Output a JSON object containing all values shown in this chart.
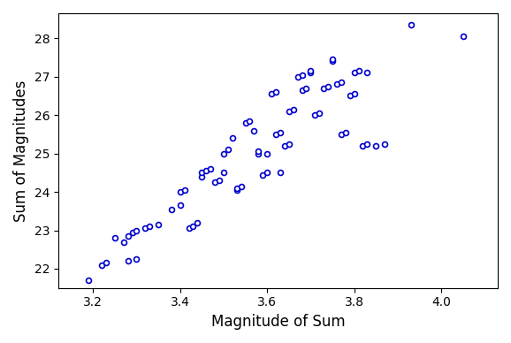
{
  "x": [
    3.19,
    3.22,
    3.23,
    3.25,
    3.27,
    3.28,
    3.29,
    3.3,
    3.28,
    3.3,
    3.32,
    3.33,
    3.35,
    3.38,
    3.4,
    3.4,
    3.41,
    3.42,
    3.43,
    3.44,
    3.45,
    3.45,
    3.46,
    3.47,
    3.48,
    3.49,
    3.5,
    3.5,
    3.51,
    3.52,
    3.53,
    3.53,
    3.54,
    3.55,
    3.56,
    3.57,
    3.58,
    3.58,
    3.59,
    3.6,
    3.6,
    3.61,
    3.62,
    3.62,
    3.63,
    3.63,
    3.64,
    3.65,
    3.65,
    3.66,
    3.67,
    3.68,
    3.68,
    3.69,
    3.7,
    3.7,
    3.71,
    3.72,
    3.73,
    3.74,
    3.75,
    3.75,
    3.76,
    3.77,
    3.77,
    3.78,
    3.79,
    3.8,
    3.8,
    3.81,
    3.82,
    3.83,
    3.83,
    3.85,
    3.87,
    3.93,
    4.05
  ],
  "y": [
    21.7,
    22.1,
    22.15,
    22.8,
    22.7,
    22.85,
    22.95,
    23.0,
    22.2,
    22.25,
    23.05,
    23.1,
    23.15,
    23.55,
    23.65,
    24.0,
    24.05,
    23.05,
    23.1,
    23.2,
    24.4,
    24.5,
    24.55,
    24.6,
    24.25,
    24.3,
    25.0,
    24.5,
    25.1,
    25.4,
    24.05,
    24.1,
    24.15,
    25.8,
    25.85,
    25.6,
    25.0,
    25.05,
    24.45,
    24.5,
    25.0,
    26.55,
    26.6,
    25.5,
    25.55,
    24.5,
    25.2,
    25.25,
    26.1,
    26.15,
    27.0,
    27.05,
    26.65,
    26.7,
    27.1,
    27.15,
    26.0,
    26.05,
    26.7,
    26.75,
    27.4,
    27.45,
    26.8,
    26.85,
    25.5,
    25.55,
    26.5,
    26.55,
    27.1,
    27.15,
    25.2,
    25.25,
    27.1,
    25.2,
    25.25,
    28.35,
    28.05
  ],
  "marker_color": "#0000cc",
  "marker_facecolor": "#ffffff",
  "marker_size": 18,
  "marker_linewidth": 1.2,
  "xlabel": "Magnitude of Sum",
  "ylabel": "Sum of Magnitudes",
  "xlim": [
    3.12,
    4.13
  ],
  "ylim": [
    21.5,
    28.65
  ],
  "xticks": [
    3.2,
    3.4,
    3.6,
    3.8,
    4.0
  ],
  "yticks": [
    22,
    23,
    24,
    25,
    26,
    27,
    28
  ],
  "xlabel_fontsize": 12,
  "ylabel_fontsize": 12,
  "tick_fontsize": 10,
  "background_color": "#ffffff"
}
